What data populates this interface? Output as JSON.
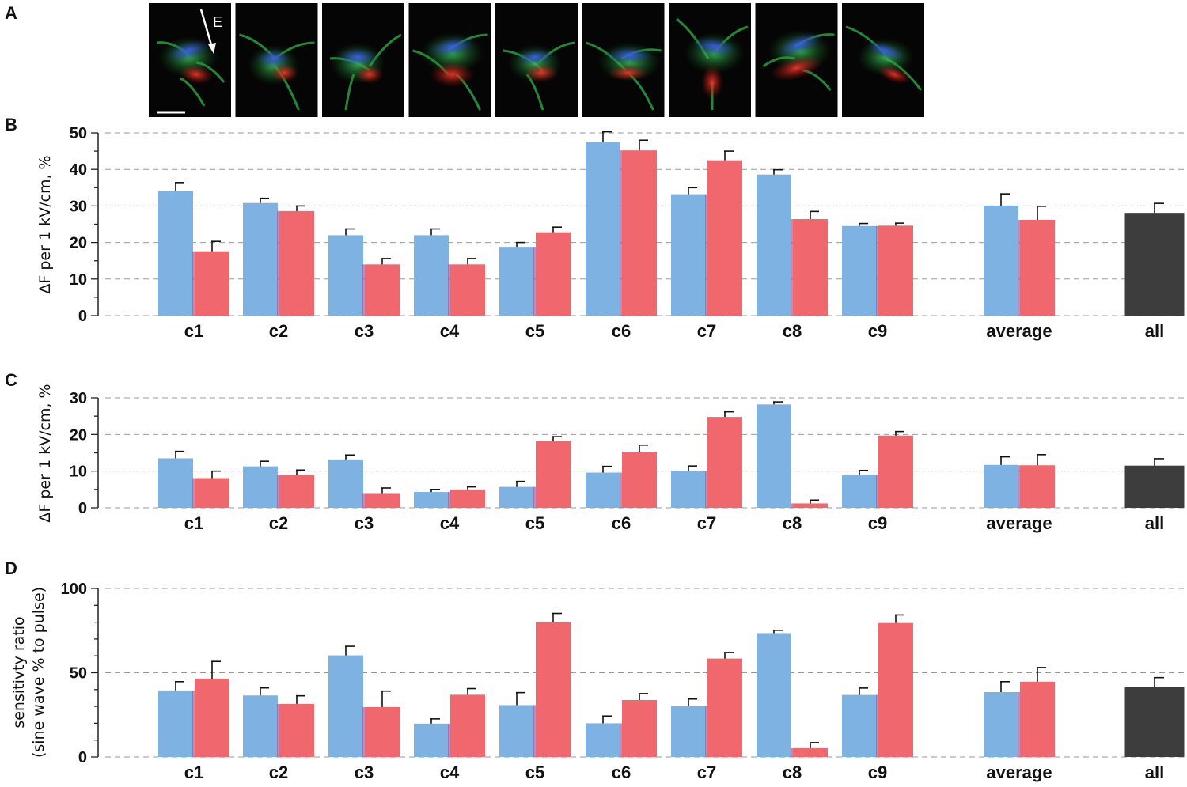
{
  "panels": {
    "A": "A",
    "B": "B",
    "C": "C",
    "D": "D"
  },
  "micrograph": {
    "count": 9,
    "field_label": "E",
    "fluorescence_colors": {
      "blue": "#2f4fd8",
      "red": "#d8271c",
      "green": "#2fb348"
    }
  },
  "colors": {
    "blue_bar": "#7db2e3",
    "red_bar": "#f0686e",
    "all_bar": "#3d3d3d",
    "grid": "#9a9a9a"
  },
  "chart_data": [
    {
      "id": "B",
      "type": "bar",
      "ylabel": "ΔF per 1 kV/cm, %",
      "ylim": [
        0,
        50
      ],
      "yticks": [
        0,
        10,
        20,
        30,
        40,
        50
      ],
      "grid": true,
      "categories": [
        "c1",
        "c2",
        "c3",
        "c4",
        "c5",
        "c6",
        "c7",
        "c8",
        "c9",
        "average",
        "all"
      ],
      "series": [
        {
          "name": "blue",
          "values": [
            34.2,
            30.8,
            22.0,
            22.0,
            18.8,
            47.5,
            33.2,
            38.6,
            24.5,
            30.1,
            null
          ],
          "errors": [
            2.2,
            1.3,
            1.7,
            1.7,
            1.2,
            2.8,
            1.8,
            1.3,
            0.7,
            3.2,
            null
          ]
        },
        {
          "name": "red",
          "values": [
            17.6,
            28.6,
            14.0,
            14.0,
            22.8,
            45.2,
            42.5,
            26.4,
            24.6,
            26.2,
            null
          ],
          "errors": [
            2.7,
            1.4,
            1.6,
            1.6,
            1.4,
            2.8,
            2.5,
            2.1,
            0.7,
            3.7,
            null
          ]
        },
        {
          "name": "all",
          "values": [
            null,
            null,
            null,
            null,
            null,
            null,
            null,
            null,
            null,
            null,
            28.1
          ],
          "errors": [
            null,
            null,
            null,
            null,
            null,
            null,
            null,
            null,
            null,
            null,
            2.6
          ]
        }
      ]
    },
    {
      "id": "C",
      "type": "bar",
      "ylabel": "ΔF per 1 kV/cm, %",
      "ylim": [
        0,
        30
      ],
      "yticks": [
        0,
        10,
        20,
        30
      ],
      "grid": true,
      "categories": [
        "c1",
        "c2",
        "c3",
        "c4",
        "c5",
        "c6",
        "c7",
        "c8",
        "c9",
        "average",
        "all"
      ],
      "series": [
        {
          "name": "blue",
          "values": [
            13.5,
            11.3,
            13.2,
            4.3,
            5.7,
            9.6,
            10.0,
            28.2,
            9.0,
            11.7,
            null
          ],
          "errors": [
            1.9,
            1.4,
            1.2,
            0.7,
            1.5,
            1.7,
            1.4,
            0.7,
            1.2,
            2.2,
            null
          ]
        },
        {
          "name": "red",
          "values": [
            8.1,
            9.0,
            4.0,
            5.0,
            18.3,
            15.3,
            24.8,
            1.2,
            19.7,
            11.6,
            null
          ],
          "errors": [
            1.9,
            1.3,
            1.4,
            0.7,
            1.1,
            1.8,
            1.4,
            0.9,
            1.1,
            2.9,
            null
          ]
        },
        {
          "name": "all",
          "values": [
            null,
            null,
            null,
            null,
            null,
            null,
            null,
            null,
            null,
            null,
            11.5
          ],
          "errors": [
            null,
            null,
            null,
            null,
            null,
            null,
            null,
            null,
            null,
            null,
            1.9
          ]
        }
      ]
    },
    {
      "id": "D",
      "type": "bar",
      "ylabel": "sensitivty ratio (sine wave % to pulse)",
      "ylabel_lines": [
        "sensitivty ratio",
        "(sine wave % to pulse)"
      ],
      "ylim": [
        0,
        100
      ],
      "yticks": [
        0,
        50,
        100
      ],
      "grid": true,
      "categories": [
        "c1",
        "c2",
        "c3",
        "c4",
        "c5",
        "c6",
        "c7",
        "c8",
        "c9",
        "average",
        "all"
      ],
      "series": [
        {
          "name": "blue",
          "values": [
            39.5,
            36.5,
            60.3,
            19.8,
            30.8,
            20.0,
            30.2,
            73.5,
            36.8,
            38.5,
            null
          ],
          "errors": [
            5.2,
            4.5,
            5.4,
            2.8,
            7.4,
            4.3,
            4.2,
            1.7,
            4.1,
            6.2,
            null
          ]
        },
        {
          "name": "red",
          "values": [
            46.5,
            31.5,
            29.6,
            36.9,
            80.0,
            33.8,
            58.4,
            5.2,
            79.5,
            44.7,
            null
          ],
          "errors": [
            10.2,
            4.8,
            9.5,
            3.7,
            5.2,
            3.8,
            3.6,
            3.3,
            4.8,
            8.4,
            null
          ]
        },
        {
          "name": "all",
          "values": [
            null,
            null,
            null,
            null,
            null,
            null,
            null,
            null,
            null,
            null,
            41.5
          ],
          "errors": [
            null,
            null,
            null,
            null,
            null,
            null,
            null,
            null,
            null,
            null,
            5.6
          ]
        }
      ]
    }
  ]
}
